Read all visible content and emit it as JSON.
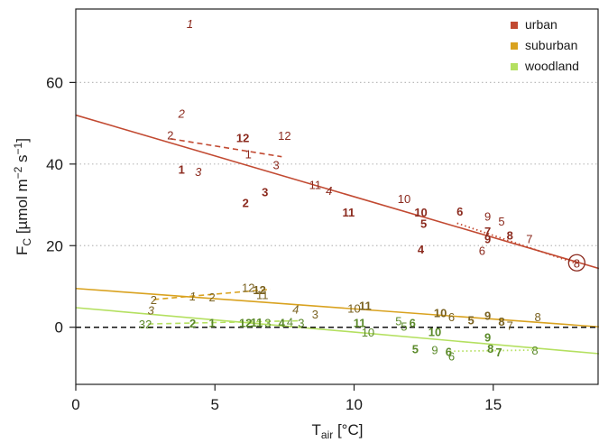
{
  "chart_data": {
    "type": "scatter",
    "xlabel_main": "T",
    "xlabel_sub": "air",
    "xlabel_unit": " [°C]",
    "ylabel_main": "F",
    "ylabel_sub": "C",
    "ylabel_unit_a": " [µmol m",
    "ylabel_exp_a": "−2",
    "ylabel_unit_b": " s",
    "ylabel_exp_b": "−1",
    "ylabel_unit_c": "]",
    "xlim": [
      0,
      18.8
    ],
    "ylim": [
      -14,
      78
    ],
    "xticks": [
      0,
      5,
      10,
      15
    ],
    "yticks": [
      0,
      20,
      40,
      60
    ],
    "grid": "horizontal-dotted",
    "legend_position": "top-right",
    "zero_line": true,
    "series": [
      {
        "name": "urban",
        "color": "#c24a32",
        "label_color": "#8b2a1e",
        "fit": {
          "intercept": 52,
          "slope": -2.0,
          "x_range": [
            0,
            18.8
          ]
        },
        "points": [
          {
            "x": 4.1,
            "y": 74.5,
            "label": "1",
            "style": "italic"
          },
          {
            "x": 3.8,
            "y": 52.5,
            "label": "2",
            "style": "italic"
          },
          {
            "x": 3.4,
            "y": 47.2,
            "label": "2",
            "style": "normal"
          },
          {
            "x": 6.0,
            "y": 46.5,
            "label": "12",
            "style": "bold"
          },
          {
            "x": 7.5,
            "y": 47.0,
            "label": "12",
            "style": "normal"
          },
          {
            "x": 6.2,
            "y": 42.5,
            "label": "1",
            "style": "normal"
          },
          {
            "x": 7.2,
            "y": 39.8,
            "label": "3",
            "style": "normal"
          },
          {
            "x": 3.8,
            "y": 38.8,
            "label": "1",
            "style": "bold"
          },
          {
            "x": 4.4,
            "y": 38.2,
            "label": "3",
            "style": "italic"
          },
          {
            "x": 6.8,
            "y": 33.2,
            "label": "3",
            "style": "bold"
          },
          {
            "x": 6.1,
            "y": 30.6,
            "label": "2",
            "style": "bold"
          },
          {
            "x": 8.6,
            "y": 35.0,
            "label": "11",
            "style": "normal"
          },
          {
            "x": 9.1,
            "y": 33.5,
            "label": "4",
            "style": "italic"
          },
          {
            "x": 9.8,
            "y": 28.2,
            "label": "11",
            "style": "bold"
          },
          {
            "x": 11.8,
            "y": 31.6,
            "label": "10",
            "style": "normal"
          },
          {
            "x": 12.4,
            "y": 28.2,
            "label": "10",
            "style": "bold"
          },
          {
            "x": 12.5,
            "y": 25.5,
            "label": "5",
            "style": "bold"
          },
          {
            "x": 13.8,
            "y": 28.5,
            "label": "6",
            "style": "bold"
          },
          {
            "x": 14.8,
            "y": 27.2,
            "label": "9",
            "style": "normal"
          },
          {
            "x": 15.3,
            "y": 26.0,
            "label": "5",
            "style": "normal"
          },
          {
            "x": 14.8,
            "y": 23.6,
            "label": "7",
            "style": "bold"
          },
          {
            "x": 14.8,
            "y": 21.7,
            "label": "9",
            "style": "bold"
          },
          {
            "x": 15.6,
            "y": 22.6,
            "label": "8",
            "style": "bold"
          },
          {
            "x": 16.3,
            "y": 21.7,
            "label": "7",
            "style": "normal"
          },
          {
            "x": 12.4,
            "y": 19.2,
            "label": "4",
            "style": "bold"
          },
          {
            "x": 14.6,
            "y": 18.8,
            "label": "6",
            "style": "normal"
          },
          {
            "x": 18.0,
            "y": 15.8,
            "label": "8",
            "style": "circled"
          }
        ],
        "dashed_segments": [
          {
            "x": [
              3.4,
              7.4
            ],
            "y": [
              46.2,
              41.8
            ]
          }
        ],
        "dotted_segments": [
          {
            "x": [
              13.7,
              18.0
            ],
            "y": [
              25.5,
              15.6
            ]
          }
        ]
      },
      {
        "name": "suburban",
        "color": "#d9a21f",
        "label_color": "#7a6221",
        "fit": {
          "intercept": 9.5,
          "slope": -0.5,
          "x_range": [
            0,
            18.8
          ]
        },
        "points": [
          {
            "x": 2.8,
            "y": 6.8,
            "label": "2",
            "style": "normal"
          },
          {
            "x": 2.7,
            "y": 4.2,
            "label": "3",
            "style": "italic"
          },
          {
            "x": 4.2,
            "y": 7.7,
            "label": "1",
            "style": "italic"
          },
          {
            "x": 4.9,
            "y": 7.5,
            "label": "2",
            "style": "normal"
          },
          {
            "x": 6.2,
            "y": 9.8,
            "label": "12",
            "style": "normal"
          },
          {
            "x": 6.6,
            "y": 9.2,
            "label": "12",
            "style": "bold"
          },
          {
            "x": 6.7,
            "y": 8.0,
            "label": "11",
            "style": "normal"
          },
          {
            "x": 7.9,
            "y": 4.5,
            "label": "4",
            "style": "italic"
          },
          {
            "x": 8.6,
            "y": 3.2,
            "label": "3",
            "style": "normal"
          },
          {
            "x": 10.0,
            "y": 4.7,
            "label": "10",
            "style": "normal"
          },
          {
            "x": 10.4,
            "y": 5.4,
            "label": "11",
            "style": "bold"
          },
          {
            "x": 13.1,
            "y": 3.6,
            "label": "10",
            "style": "bold"
          },
          {
            "x": 13.5,
            "y": 2.6,
            "label": "6",
            "style": "normal"
          },
          {
            "x": 14.2,
            "y": 1.8,
            "label": "5",
            "style": "bold"
          },
          {
            "x": 14.8,
            "y": 2.9,
            "label": "9",
            "style": "bold"
          },
          {
            "x": 15.3,
            "y": 1.5,
            "label": "8",
            "style": "bold"
          },
          {
            "x": 15.6,
            "y": 0.5,
            "label": "7",
            "style": "normal"
          },
          {
            "x": 16.6,
            "y": 2.6,
            "label": "8",
            "style": "normal"
          }
        ],
        "dashed_segments": [
          {
            "x": [
              2.8,
              7.0
            ],
            "y": [
              6.8,
              9.3
            ]
          }
        ]
      },
      {
        "name": "woodland",
        "color": "#b4e060",
        "label_color": "#5b8a2a",
        "fit": {
          "intercept": 4.8,
          "slope": -0.6,
          "x_range": [
            0,
            18.8
          ]
        },
        "points": [
          {
            "x": 2.5,
            "y": 0.8,
            "label": "32",
            "style": "normal"
          },
          {
            "x": 4.2,
            "y": 1.0,
            "label": "2",
            "style": "bold"
          },
          {
            "x": 4.9,
            "y": 1.1,
            "label": "1",
            "style": "bold"
          },
          {
            "x": 6.1,
            "y": 1.1,
            "label": "12",
            "style": "bold"
          },
          {
            "x": 6.5,
            "y": 1.3,
            "label": "11",
            "style": "bold"
          },
          {
            "x": 6.9,
            "y": 1.2,
            "label": "3",
            "style": "normal"
          },
          {
            "x": 7.4,
            "y": 1.1,
            "label": "4",
            "style": "bold"
          },
          {
            "x": 7.7,
            "y": 1.4,
            "label": "4",
            "style": "normal"
          },
          {
            "x": 8.1,
            "y": 1.1,
            "label": "3",
            "style": "normal"
          },
          {
            "x": 10.2,
            "y": 1.1,
            "label": "11",
            "style": "bold"
          },
          {
            "x": 10.5,
            "y": -1.2,
            "label": "10",
            "style": "normal"
          },
          {
            "x": 11.6,
            "y": 1.6,
            "label": "5",
            "style": "normal"
          },
          {
            "x": 11.8,
            "y": 0.3,
            "label": "5",
            "style": "normal"
          },
          {
            "x": 12.1,
            "y": 1.2,
            "label": "6",
            "style": "bold"
          },
          {
            "x": 12.9,
            "y": -1.1,
            "label": "10",
            "style": "bold"
          },
          {
            "x": 14.8,
            "y": -2.4,
            "label": "9",
            "style": "bold"
          },
          {
            "x": 12.2,
            "y": -5.3,
            "label": "5",
            "style": "bold"
          },
          {
            "x": 12.9,
            "y": -5.5,
            "label": "9",
            "style": "normal"
          },
          {
            "x": 13.4,
            "y": -5.9,
            "label": "6",
            "style": "bold"
          },
          {
            "x": 13.5,
            "y": -7.0,
            "label": "6",
            "style": "normal"
          },
          {
            "x": 14.9,
            "y": -5.2,
            "label": "8",
            "style": "bold"
          },
          {
            "x": 15.2,
            "y": -6.0,
            "label": "7",
            "style": "bold"
          },
          {
            "x": 16.5,
            "y": -5.6,
            "label": "8",
            "style": "normal"
          }
        ],
        "dashed_segments": [
          {
            "x": [
              2.6,
              8.1
            ],
            "y": [
              0.8,
              1.6
            ]
          }
        ],
        "dotted_segments": [
          {
            "x": [
              13.3,
              16.4
            ],
            "y": [
              -5.9,
              -5.6
            ]
          }
        ]
      }
    ]
  }
}
